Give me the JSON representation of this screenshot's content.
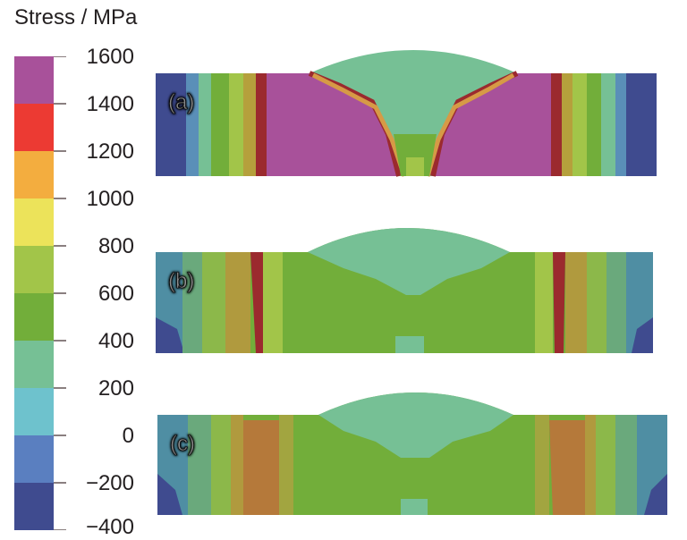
{
  "legend": {
    "title": "Stress / MPa",
    "ticks": [
      "1600",
      "1400",
      "1200",
      "1000",
      "800",
      "600",
      "400",
      "200",
      "0",
      "−200",
      "−400"
    ],
    "bands": [
      "#a8519a",
      "#ec3a33",
      "#f3ad3f",
      "#ece35a",
      "#a2c549",
      "#72ae3a",
      "#76c095",
      "#6ec2cd",
      "#5a7fc0",
      "#3f4b8f"
    ]
  },
  "panels": [
    {
      "label": "(a)"
    },
    {
      "label": "(b)"
    },
    {
      "label": "(c)"
    }
  ]
}
